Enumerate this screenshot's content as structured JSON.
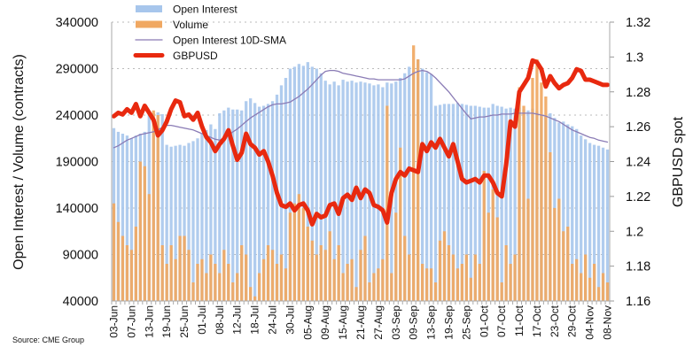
{
  "chart_data": {
    "type": "bar+line",
    "ylabel": "Open Interest / Volume (contracts)",
    "y2label": "GBPUSD spot",
    "ylim": [
      40000,
      340000
    ],
    "y2lim": [
      1.16,
      1.32
    ],
    "yticks": [
      "340000",
      "290000",
      "240000",
      "190000",
      "140000",
      "90000",
      "40000"
    ],
    "y2ticks": [
      "1.32",
      "1.3",
      "1.28",
      "1.26",
      "1.24",
      "1.22",
      "1.2",
      "1.18",
      "1.16"
    ],
    "grid": true,
    "legend_position": "top-left",
    "source": "Source: CME Group",
    "xtick_labels": [
      "03-Jun",
      "07-Jun",
      "13-Jun",
      "19-Jun",
      "25-Jun",
      "01-Jul",
      "08-Jul",
      "12-Jul",
      "18-Jul",
      "24-Jul",
      "30-Jul",
      "05-Aug",
      "09-Aug",
      "15-Aug",
      "21-Aug",
      "27-Aug",
      "03-Sep",
      "09-Sep",
      "13-Sep",
      "19-Sep",
      "25-Sep",
      "01-Oct",
      "07-Oct",
      "11-Oct",
      "17-Oct",
      "23-Oct",
      "29-Oct",
      "04-Nov",
      "08-Nov"
    ],
    "xtick_every": 4,
    "series": [
      {
        "name": "Open Interest",
        "type": "bar",
        "axis": "left",
        "color": "#a7c6ec",
        "values": [
          226000,
          222000,
          220000,
          218000,
          215000,
          218000,
          220000,
          222000,
          240000,
          242000,
          243000,
          241000,
          208000,
          206000,
          207000,
          208000,
          207000,
          210000,
          212000,
          215000,
          220000,
          224000,
          230000,
          225000,
          242000,
          245000,
          248000,
          246000,
          246000,
          245000,
          255000,
          258000,
          253000,
          249000,
          250000,
          252000,
          255000,
          262000,
          272000,
          280000,
          290000,
          292000,
          295000,
          293000,
          297000,
          292000,
          290000,
          285000,
          277000,
          273000,
          276000,
          272000,
          278000,
          276000,
          277000,
          275000,
          276000,
          275000,
          274000,
          272000,
          273000,
          270000,
          275000,
          274000,
          276000,
          280000,
          285000,
          292000,
          288000,
          300000,
          290000,
          286000,
          284000,
          250000,
          251000,
          252000,
          252000,
          252000,
          253000,
          252000,
          251000,
          250000,
          250000,
          249000,
          248000,
          248000,
          252000,
          250000,
          249000,
          247000,
          248000,
          247000,
          248000,
          246000,
          245000,
          247000,
          244000,
          240000,
          238000,
          242000,
          237000,
          232000,
          233000,
          230000,
          228000,
          225000,
          218000,
          214000,
          210000,
          208000,
          207000,
          205000,
          203000
        ]
      },
      {
        "name": "Volume",
        "type": "bar",
        "axis": "left",
        "color": "#f0a862",
        "values": [
          145000,
          125000,
          110000,
          100000,
          95000,
          120000,
          190000,
          185000,
          155000,
          245000,
          240000,
          100000,
          80000,
          100000,
          85000,
          110000,
          110000,
          95000,
          60000,
          80000,
          85000,
          70000,
          90000,
          80000,
          70000,
          95000,
          80000,
          60000,
          70000,
          100000,
          90000,
          55000,
          45000,
          70000,
          85000,
          100000,
          95000,
          80000,
          90000,
          75000,
          135000,
          145000,
          155000,
          140000,
          120000,
          105000,
          90000,
          100000,
          95000,
          115000,
          85000,
          100000,
          70000,
          80000,
          85000,
          55000,
          95000,
          110000,
          60000,
          70000,
          75000,
          85000,
          250000,
          70000,
          135000,
          205000,
          110000,
          90000,
          315000,
          300000,
          80000,
          75000,
          75000,
          60000,
          105000,
          115000,
          100000,
          90000,
          75000,
          80000,
          90000,
          65000,
          90000,
          80000,
          180000,
          135000,
          160000,
          130000,
          60000,
          100000,
          80000,
          90000,
          270000,
          250000,
          150000,
          280000,
          300000,
          275000,
          260000,
          200000,
          140000,
          150000,
          115000,
          120000,
          80000,
          85000,
          70000,
          90000,
          65000,
          80000,
          55000,
          70000,
          60000
        ]
      },
      {
        "name": "Open Interest 10D-SMA",
        "type": "line",
        "axis": "left",
        "color": "#8a7bb5",
        "values": [
          205000,
          207000,
          210000,
          213000,
          215000,
          217000,
          219000,
          220000,
          221000,
          222000,
          224000,
          227000,
          229000,
          229000,
          228000,
          227000,
          226000,
          225000,
          224000,
          222000,
          220000,
          218000,
          216000,
          214000,
          213000,
          215000,
          218000,
          222000,
          225000,
          229000,
          233000,
          237000,
          240000,
          243000,
          246000,
          249000,
          251000,
          252000,
          252000,
          253000,
          254000,
          257000,
          260000,
          264000,
          268000,
          273000,
          278000,
          283000,
          287000,
          288000,
          288000,
          287000,
          285000,
          284000,
          283000,
          282000,
          281000,
          280000,
          279000,
          279000,
          278000,
          278000,
          278000,
          278000,
          278000,
          278000,
          279000,
          282000,
          285000,
          287000,
          288000,
          287000,
          284000,
          280000,
          275000,
          270000,
          265000,
          259000,
          253000,
          247000,
          241000,
          236000,
          237000,
          238000,
          238000,
          239000,
          240000,
          240000,
          241000,
          241000,
          241000,
          242000,
          242000,
          242000,
          242000,
          242000,
          241000,
          240000,
          239000,
          237000,
          235000,
          233000,
          230000,
          227000,
          224000,
          222000,
          220000,
          218000,
          216000,
          215000,
          213000,
          212000,
          211000
        ]
      },
      {
        "name": "GBPUSD",
        "type": "line",
        "axis": "right",
        "color": "#e8290f",
        "values": [
          1.266,
          1.268,
          1.267,
          1.27,
          1.268,
          1.273,
          1.266,
          1.272,
          1.268,
          1.264,
          1.255,
          1.258,
          1.263,
          1.27,
          1.275,
          1.274,
          1.266,
          1.267,
          1.264,
          1.268,
          1.26,
          1.254,
          1.251,
          1.246,
          1.25,
          1.253,
          1.258,
          1.249,
          1.241,
          1.245,
          1.256,
          1.25,
          1.248,
          1.244,
          1.246,
          1.24,
          1.232,
          1.222,
          1.215,
          1.214,
          1.216,
          1.212,
          1.215,
          1.216,
          1.212,
          1.204,
          1.21,
          1.208,
          1.209,
          1.215,
          1.216,
          1.21,
          1.219,
          1.221,
          1.218,
          1.225,
          1.219,
          1.224,
          1.222,
          1.215,
          1.214,
          1.212,
          1.205,
          1.222,
          1.23,
          1.234,
          1.232,
          1.236,
          1.235,
          1.234,
          1.25,
          1.246,
          1.251,
          1.248,
          1.253,
          1.248,
          1.243,
          1.25,
          1.24,
          1.23,
          1.228,
          1.229,
          1.23,
          1.228,
          1.232,
          1.232,
          1.228,
          1.222,
          1.22,
          1.238,
          1.263,
          1.26,
          1.28,
          1.284,
          1.288,
          1.298,
          1.297,
          1.293,
          1.283,
          1.289,
          1.285,
          1.282,
          1.284,
          1.285,
          1.288,
          1.293,
          1.292,
          1.287,
          1.287,
          1.286,
          1.285,
          1.284,
          1.284
        ]
      }
    ]
  }
}
